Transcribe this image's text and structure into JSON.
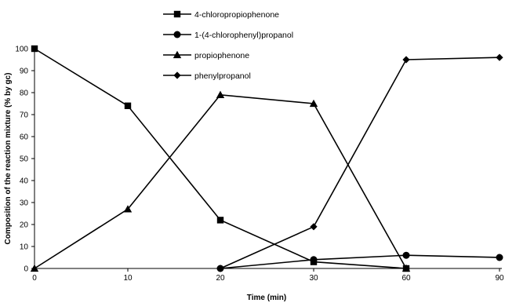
{
  "chart_data": {
    "type": "line",
    "categories": [
      "0",
      "10",
      "20",
      "30",
      "60",
      "90"
    ],
    "xlabel": "Time (min)",
    "ylabel": "Composition of the reaction mixture (% by gc)",
    "ylim": [
      0,
      100
    ],
    "yticks": [
      "0",
      "10",
      "20",
      "30",
      "40",
      "50",
      "60",
      "70",
      "80",
      "90",
      "100"
    ],
    "grid": false,
    "legend_position": "top",
    "series": [
      {
        "name": "4-chloropropiophenone",
        "marker": "square",
        "points": [
          [
            0,
            100
          ],
          [
            1,
            74
          ],
          [
            2,
            22
          ],
          [
            3,
            3
          ],
          [
            4,
            0
          ]
        ]
      },
      {
        "name": "1-(4-chlorophenyl)propanol",
        "marker": "circle",
        "points": [
          [
            2,
            0
          ],
          [
            3,
            4
          ],
          [
            4,
            6
          ],
          [
            5,
            5
          ]
        ]
      },
      {
        "name": "propiophenone",
        "marker": "triangle",
        "points": [
          [
            0,
            0
          ],
          [
            1,
            27
          ],
          [
            2,
            79
          ],
          [
            3,
            75
          ],
          [
            4,
            0
          ]
        ]
      },
      {
        "name": "phenylpropanol",
        "marker": "diamond",
        "points": [
          [
            2,
            0
          ],
          [
            3,
            19
          ],
          [
            4,
            95
          ],
          [
            5,
            96
          ]
        ]
      }
    ]
  }
}
